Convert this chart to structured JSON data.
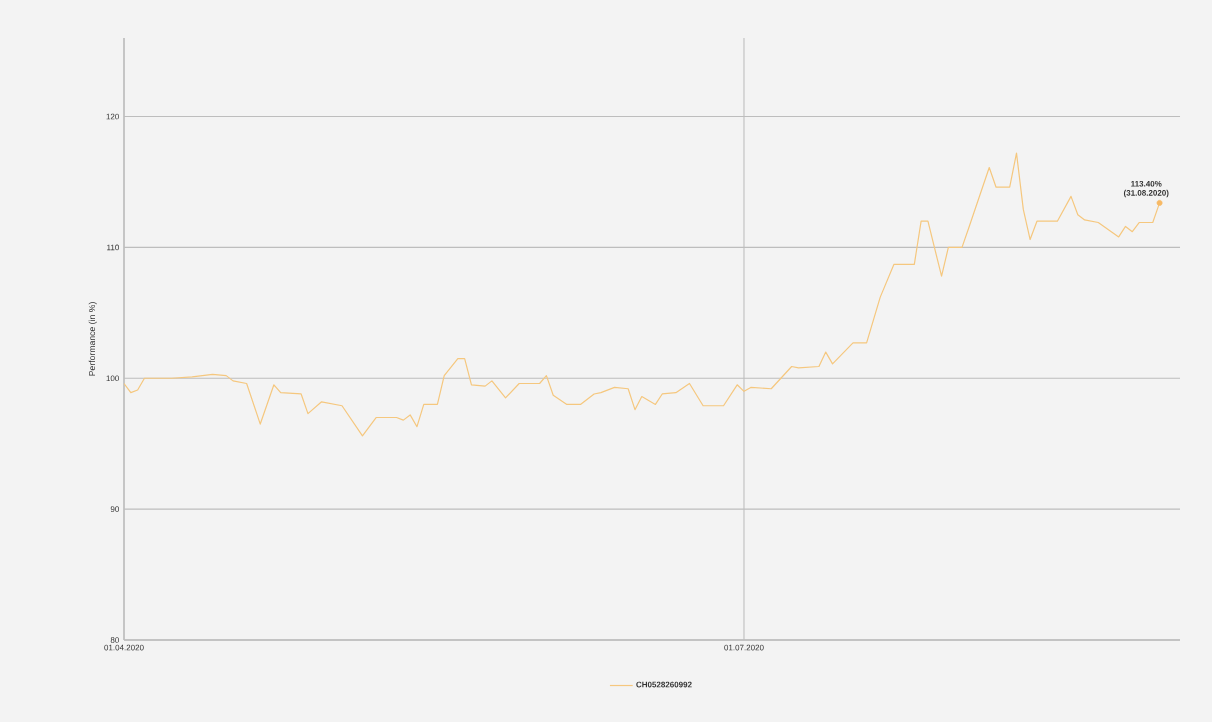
{
  "chart_data": {
    "type": "line",
    "ylabel": "Performance (in %)",
    "x": [
      "2020-04-01",
      "2020-04-02",
      "2020-04-03",
      "2020-04-04",
      "2020-04-08",
      "2020-04-11",
      "2020-04-14",
      "2020-04-16",
      "2020-04-17",
      "2020-04-19",
      "2020-04-21",
      "2020-04-23",
      "2020-04-24",
      "2020-04-27",
      "2020-04-28",
      "2020-04-30",
      "2020-05-03",
      "2020-05-06",
      "2020-05-08",
      "2020-05-11",
      "2020-05-12",
      "2020-05-13",
      "2020-05-14",
      "2020-05-15",
      "2020-05-17",
      "2020-05-18",
      "2020-05-20",
      "2020-05-21",
      "2020-05-22",
      "2020-05-24",
      "2020-05-25",
      "2020-05-27",
      "2020-05-29",
      "2020-06-01",
      "2020-06-02",
      "2020-06-03",
      "2020-06-05",
      "2020-06-07",
      "2020-06-09",
      "2020-06-10",
      "2020-06-12",
      "2020-06-14",
      "2020-06-15",
      "2020-06-16",
      "2020-06-18",
      "2020-06-19",
      "2020-06-21",
      "2020-06-23",
      "2020-06-25",
      "2020-06-28",
      "2020-06-30",
      "2020-07-01",
      "2020-07-02",
      "2020-07-05",
      "2020-07-08",
      "2020-07-09",
      "2020-07-12",
      "2020-07-13",
      "2020-07-14",
      "2020-07-17",
      "2020-07-19",
      "2020-07-21",
      "2020-07-23",
      "2020-07-26",
      "2020-07-27",
      "2020-07-28",
      "2020-07-30",
      "2020-07-31",
      "2020-08-02",
      "2020-08-03",
      "2020-08-06",
      "2020-08-07",
      "2020-08-09",
      "2020-08-10",
      "2020-08-11",
      "2020-08-12",
      "2020-08-13",
      "2020-08-16",
      "2020-08-18",
      "2020-08-19",
      "2020-08-20",
      "2020-08-22",
      "2020-08-25",
      "2020-08-26",
      "2020-08-27",
      "2020-08-28",
      "2020-08-30",
      "2020-08-31"
    ],
    "series": [
      {
        "name": "CH0528260992",
        "color": "#f5c77e",
        "values": [
          99.6,
          98.9,
          99.1,
          100.0,
          100.0,
          100.1,
          100.3,
          100.2,
          99.8,
          99.6,
          96.5,
          99.5,
          98.9,
          98.8,
          97.3,
          98.2,
          97.9,
          95.6,
          97.0,
          97.0,
          96.8,
          97.2,
          96.3,
          98.0,
          98.0,
          100.2,
          101.5,
          101.5,
          99.5,
          99.4,
          99.8,
          98.5,
          99.6,
          99.6,
          100.2,
          98.7,
          98.0,
          98.0,
          98.8,
          98.9,
          99.3,
          99.2,
          97.6,
          98.6,
          98.0,
          98.8,
          98.9,
          99.6,
          97.9,
          97.9,
          99.5,
          99.0,
          99.3,
          99.2,
          100.9,
          100.8,
          100.9,
          102.0,
          101.1,
          102.7,
          102.7,
          106.2,
          108.7,
          108.7,
          112.0,
          112.0,
          107.8,
          110.0,
          110.0,
          111.5,
          116.1,
          114.6,
          114.6,
          117.2,
          112.9,
          110.6,
          112.0,
          112.0,
          113.9,
          112.5,
          112.1,
          111.9,
          110.8,
          111.6,
          111.2,
          111.9,
          111.9,
          113.4
        ]
      }
    ],
    "xlim": [
      "2020-04-01",
      "2020-09-03"
    ],
    "xticks": [
      {
        "value": "2020-04-01",
        "label": "01.04.2020"
      },
      {
        "value": "2020-07-01",
        "label": "01.07.2020"
      }
    ],
    "ylim": [
      80,
      126
    ],
    "yticks": [
      80,
      90,
      100,
      110,
      120
    ],
    "grid": true,
    "legend": "bottom",
    "marker": "none",
    "annotations": [
      {
        "text": "113.40%",
        "x": "2020-08-31",
        "y": 113.4
      },
      {
        "text": "(31.08.2020)",
        "x": "2020-08-31",
        "y": 113.4
      }
    ]
  }
}
